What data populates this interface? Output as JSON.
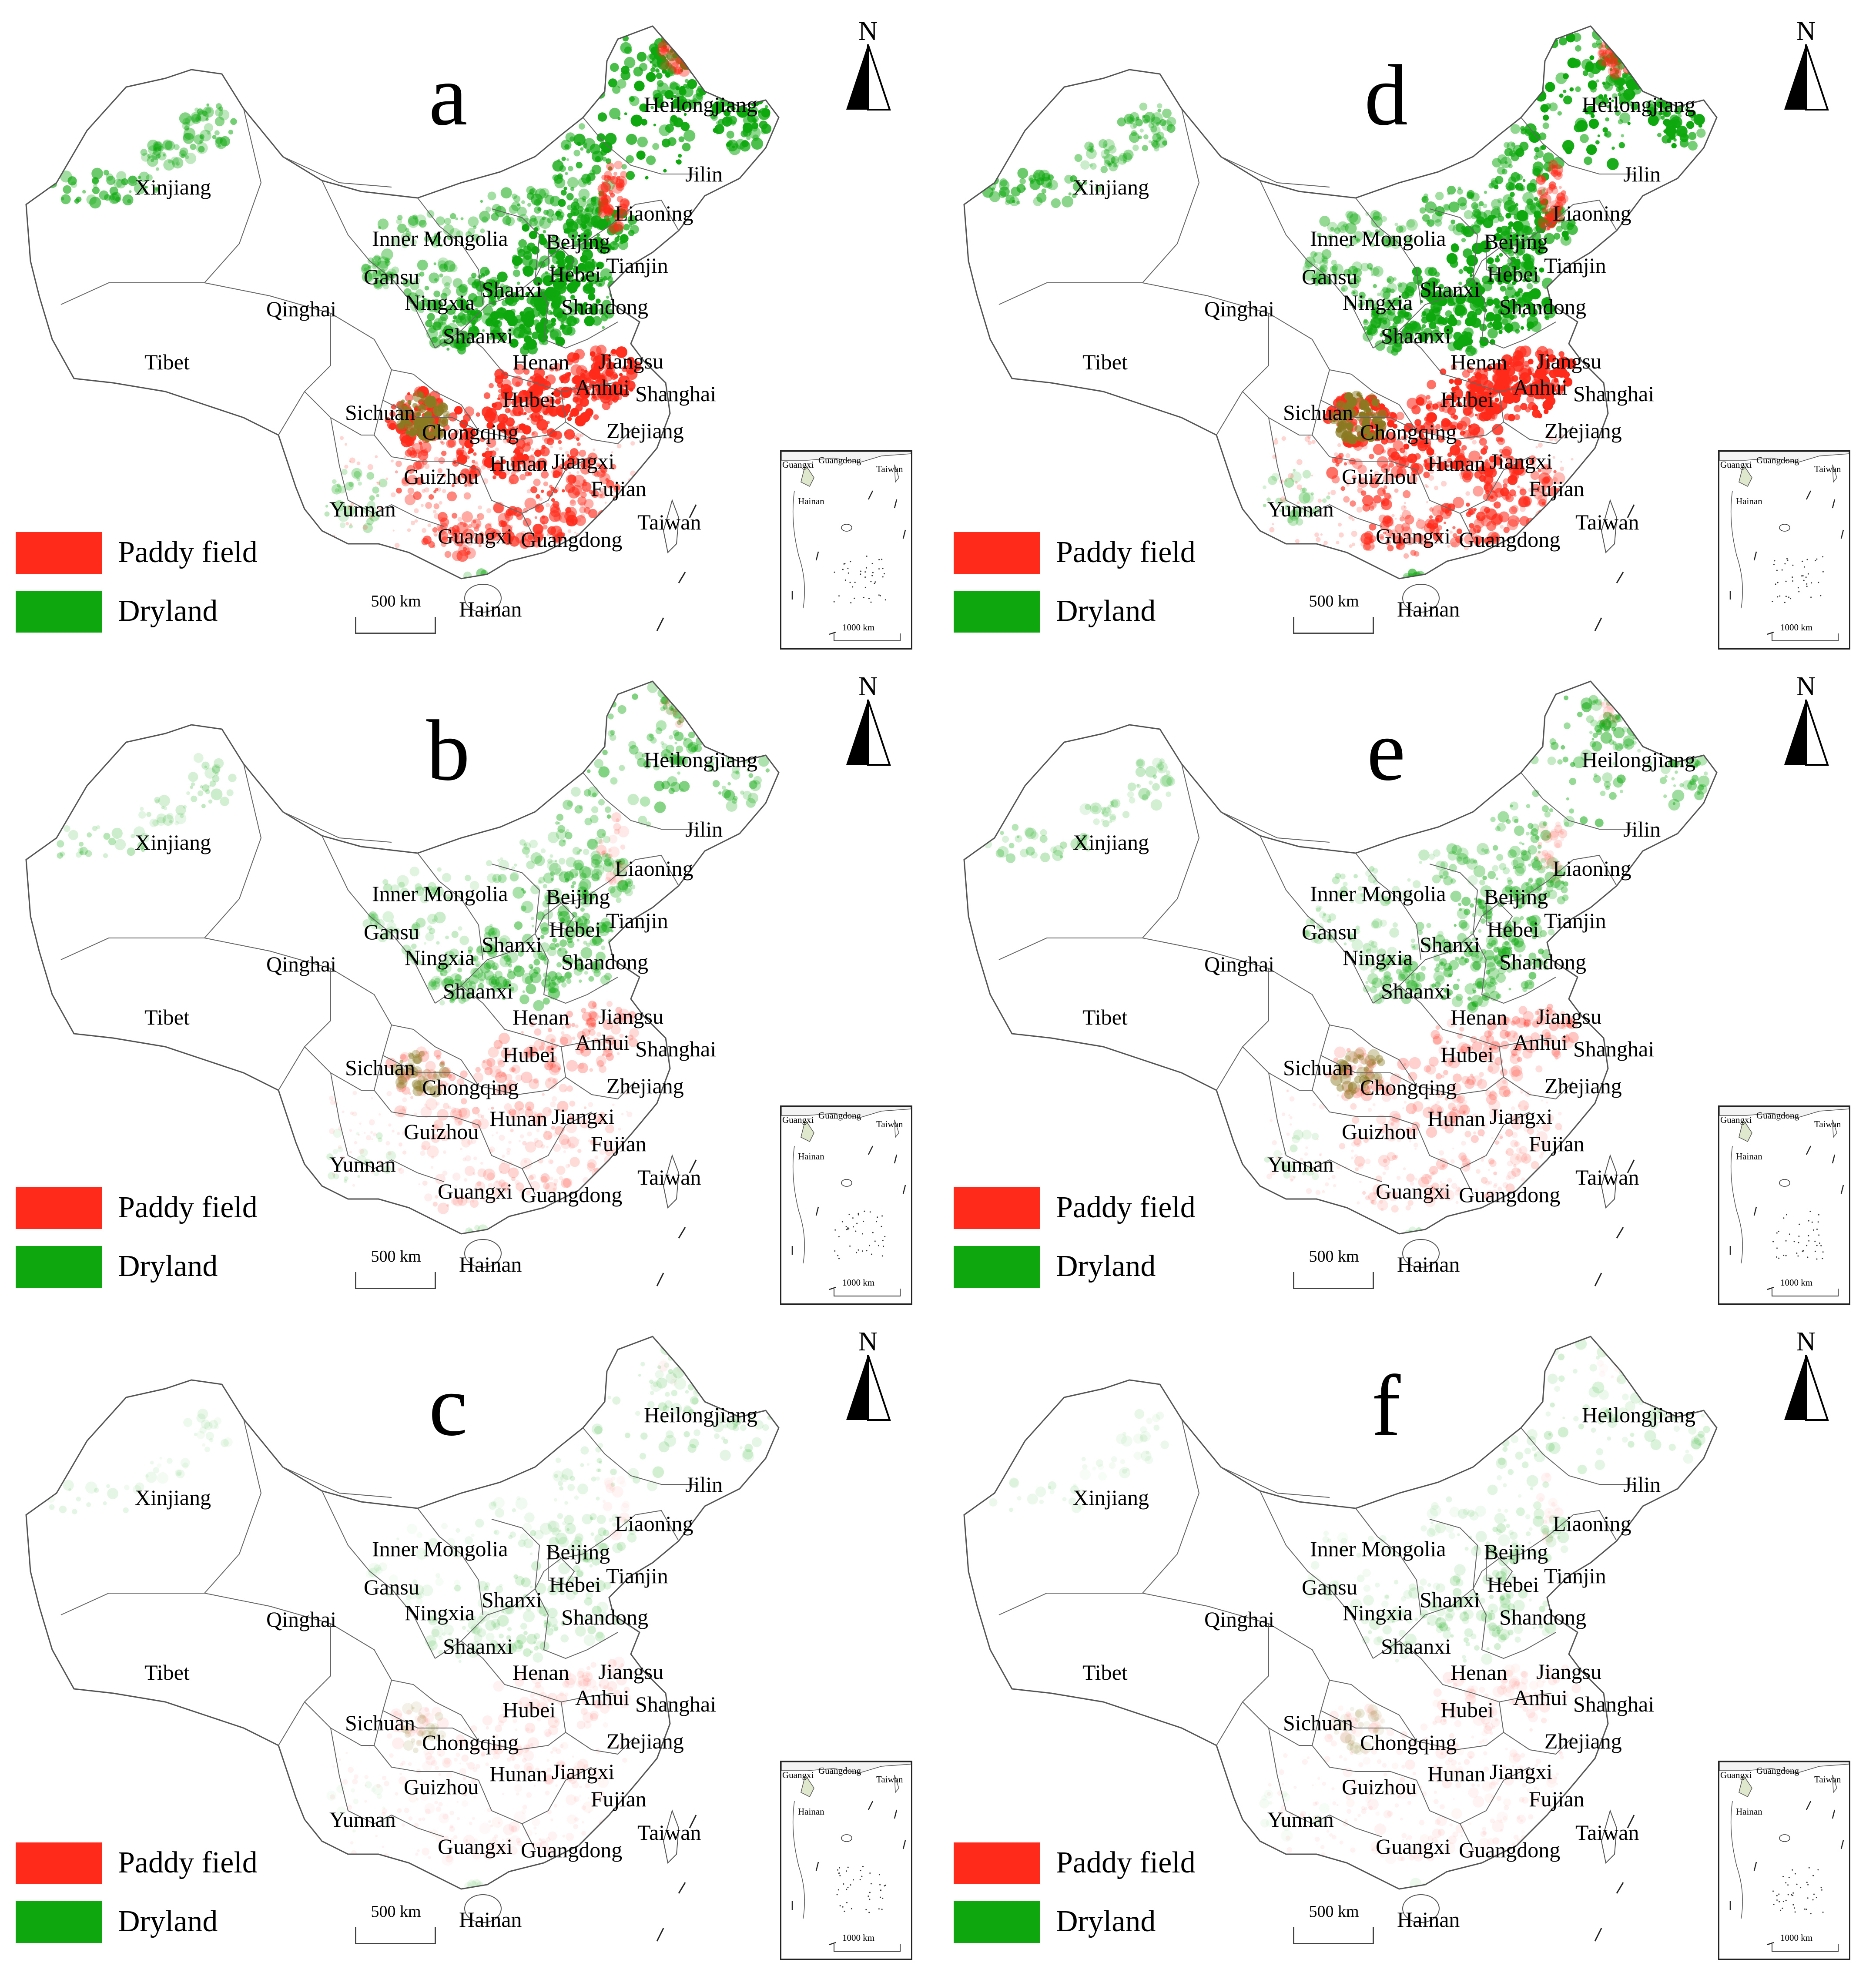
{
  "figure": {
    "panels": [
      {
        "label": "a",
        "paddy_intensity": 1.0,
        "dryland_intensity": 1.0
      },
      {
        "label": "b",
        "paddy_intensity": 0.25,
        "dryland_intensity": 0.45
      },
      {
        "label": "c",
        "paddy_intensity": 0.08,
        "dryland_intensity": 0.16
      },
      {
        "label": "d",
        "paddy_intensity": 1.0,
        "dryland_intensity": 1.0
      },
      {
        "label": "e",
        "paddy_intensity": 0.25,
        "dryland_intensity": 0.47
      },
      {
        "label": "f",
        "paddy_intensity": 0.08,
        "dryland_intensity": 0.16
      }
    ],
    "legend": {
      "paddy_label": "Paddy field",
      "dryland_label": "Dryland",
      "paddy_color": "#ff2a1a",
      "dryland_color": "#0ea80e"
    },
    "north_label": "N",
    "scale_label": "500 km",
    "inset": {
      "scale_label": "1000 km",
      "labels": [
        "Guangxi",
        "Guangdong",
        "Taiwan",
        "Hainan"
      ]
    },
    "provinces": [
      "Heilongjiang",
      "Jilin",
      "Liaoning",
      "Xinjiang",
      "Inner Mongolia",
      "Beijing",
      "Tianjin",
      "Hebei",
      "Gansu",
      "Shanxi",
      "Qinghai",
      "Ningxia",
      "Shandong",
      "Shaanxi",
      "Tibet",
      "Henan",
      "Jiangsu",
      "Anhui",
      "Shanghai",
      "Sichuan",
      "Hubei",
      "Chongqing",
      "Zhejiang",
      "Hunan",
      "Jiangxi",
      "Guizhou",
      "Fujian",
      "Yunnan",
      "Taiwan",
      "Guangxi",
      "Guangdong",
      "Hainan"
    ]
  }
}
